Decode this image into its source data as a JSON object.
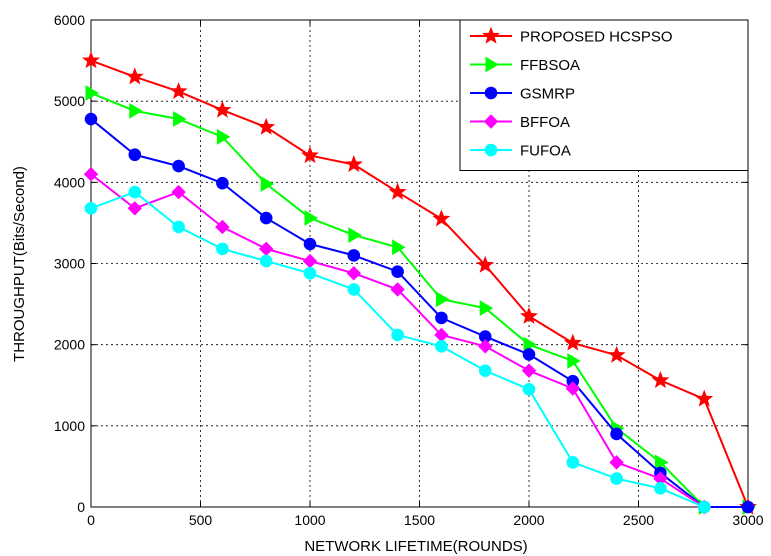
{
  "chart_data": {
    "type": "line",
    "title": "",
    "xlabel": "NETWORK LIFETIME(ROUNDS)",
    "ylabel": "THROUGHPUT(Bits/Second)",
    "xlim": [
      0,
      3000
    ],
    "ylim": [
      0,
      6000
    ],
    "xticks": [
      0,
      500,
      1000,
      1500,
      2000,
      2500,
      3000
    ],
    "yticks": [
      0,
      1000,
      2000,
      3000,
      4000,
      5000,
      6000
    ],
    "grid": true,
    "legend_position": "top-right",
    "x": [
      0,
      200,
      400,
      600,
      800,
      1000,
      1200,
      1400,
      1600,
      1800,
      2000,
      2200,
      2400,
      2600,
      2800,
      3000
    ],
    "series": [
      {
        "name": "PROPOSED HCSPSO",
        "color": "#ff0000",
        "marker": "star",
        "x": [
          0,
          200,
          400,
          600,
          800,
          1000,
          1200,
          1400,
          1600,
          1800,
          2000,
          2200,
          2400,
          2600,
          2800,
          3000
        ],
        "values": [
          5500,
          5300,
          5120,
          4890,
          4680,
          4330,
          4220,
          3880,
          3550,
          2980,
          2350,
          2020,
          1870,
          1560,
          1330,
          0
        ]
      },
      {
        "name": "FFBSOA",
        "color": "#00ff00",
        "marker": "triangle-right",
        "x": [
          0,
          200,
          400,
          600,
          800,
          1000,
          1200,
          1400,
          1600,
          1800,
          2000,
          2200,
          2400,
          2600,
          2800,
          3000
        ],
        "values": [
          5100,
          4880,
          4780,
          4560,
          3980,
          3560,
          3350,
          3200,
          2560,
          2450,
          2000,
          1800,
          970,
          550,
          0,
          0
        ]
      },
      {
        "name": "GSMRP",
        "color": "#0000ff",
        "marker": "circle",
        "x": [
          0,
          200,
          400,
          600,
          800,
          1000,
          1200,
          1400,
          1600,
          1800,
          2000,
          2200,
          2400,
          2600,
          2800,
          3000
        ],
        "values": [
          4780,
          4340,
          4200,
          3990,
          3560,
          3240,
          3100,
          2900,
          2330,
          2100,
          1880,
          1550,
          900,
          420,
          0,
          0
        ]
      },
      {
        "name": "BFFOA",
        "color": "#ff00ff",
        "marker": "diamond",
        "x": [
          0,
          200,
          400,
          600,
          800,
          1000,
          1200,
          1400,
          1600,
          1800,
          2000,
          2200,
          2400,
          2600,
          2800
        ],
        "values": [
          4100,
          3680,
          3880,
          3450,
          3180,
          3030,
          2880,
          2680,
          2120,
          1980,
          1680,
          1460,
          550,
          350,
          0
        ]
      },
      {
        "name": "FUFOA",
        "color": "#00ffff",
        "marker": "circle",
        "x": [
          0,
          200,
          400,
          600,
          800,
          1000,
          1200,
          1400,
          1600,
          1800,
          2000,
          2200,
          2400,
          2600,
          2800
        ],
        "values": [
          3680,
          3880,
          3450,
          3180,
          3030,
          2880,
          2680,
          2120,
          1980,
          1680,
          1450,
          550,
          350,
          230,
          0
        ]
      }
    ]
  }
}
